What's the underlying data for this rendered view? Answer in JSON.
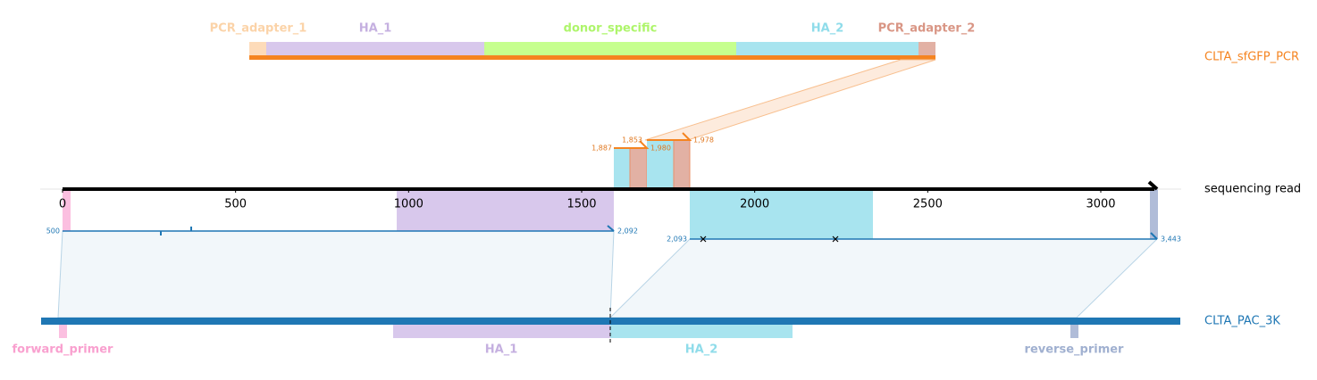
{
  "top_construct": {
    "label": "CLTA_sfGFP_PCR",
    "features": [
      {
        "label": "PCR_adapter_1"
      },
      {
        "label": "HA_1"
      },
      {
        "label": "donor_specific"
      },
      {
        "label": "HA_2"
      },
      {
        "label": "PCR_adapter_2"
      }
    ]
  },
  "read": {
    "label": "sequencing read",
    "ticks": [
      0,
      500,
      1000,
      1500,
      2000,
      2500,
      3000
    ]
  },
  "alignments": [
    {
      "start_label": "500",
      "end_label": "2,092"
    },
    {
      "start_label": "2,093",
      "end_label": "3,443"
    },
    {
      "labels": [
        "1,887",
        "1,853",
        "1,980",
        "1,978"
      ]
    }
  ],
  "bottom_construct": {
    "label": "CLTA_PAC_3K",
    "features": [
      {
        "label": "forward_primer"
      },
      {
        "label": "HA_1"
      },
      {
        "label": "HA_2"
      },
      {
        "label": "reverse_primer"
      }
    ]
  }
}
